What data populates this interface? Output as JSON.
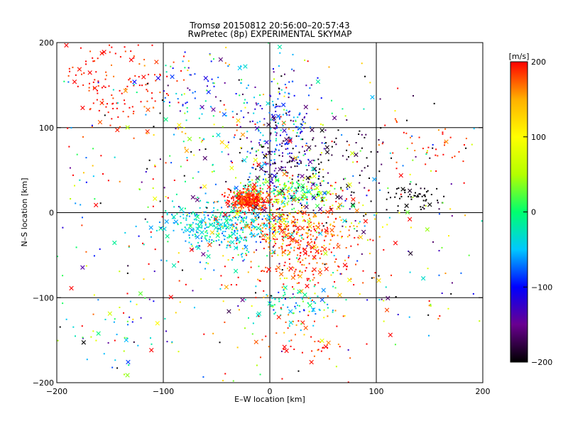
{
  "chart_data": {
    "type": "scatter",
    "title": "Tromsø 20150812 20:56:00–20:57:43",
    "subtitle": "RwPretec (8p) EXPERIMENTAL SKYMAP",
    "xlabel": "E–W location [km]",
    "ylabel": "N–S location [km]",
    "xlim": [
      -200,
      200
    ],
    "ylim": [
      -200,
      200
    ],
    "x_ticks": [
      -200,
      -100,
      0,
      100,
      200
    ],
    "y_ticks": [
      -200,
      -100,
      0,
      100,
      200
    ],
    "x_tick_labels": [
      "−200",
      "−100",
      "0",
      "100",
      "200"
    ],
    "y_tick_labels": [
      "−200",
      "−100",
      "0",
      "100",
      "200"
    ],
    "grid": true,
    "markers": [
      "dot",
      "cross"
    ],
    "colorbar": {
      "label": "[m/s]",
      "range": [
        -200,
        200
      ],
      "ticks": [
        200,
        100,
        0,
        -100,
        -200
      ],
      "tick_labels": [
        "200",
        "100",
        "0",
        "−100",
        "−200"
      ],
      "colors": [
        "#000000",
        "#6a0090",
        "#0000ff",
        "#00c8ff",
        "#00ff6e",
        "#b4ff00",
        "#ffff00",
        "#ffb000",
        "#ff0000"
      ]
    },
    "clusters": [
      {
        "cx": -20,
        "cy": 15,
        "sx": 10,
        "sy": 6,
        "n": 340,
        "v": 190,
        "vs": 18
      },
      {
        "cx": 20,
        "cy": 25,
        "sx": 22,
        "sy": 9,
        "n": 200,
        "v": 20,
        "vs": 45
      },
      {
        "cx": -40,
        "cy": -15,
        "sx": 28,
        "sy": 14,
        "n": 380,
        "v": -40,
        "vs": 22
      },
      {
        "cx": 30,
        "cy": -40,
        "sx": 25,
        "sy": 28,
        "n": 300,
        "v": 185,
        "vs": 25
      },
      {
        "cx": 20,
        "cy": -15,
        "sx": 30,
        "sy": 12,
        "n": 150,
        "v": 150,
        "vs": 50
      },
      {
        "cx": 10,
        "cy": 100,
        "sx": 18,
        "sy": 40,
        "n": 220,
        "v": -100,
        "vs": 45
      },
      {
        "cx": 40,
        "cy": 60,
        "sx": 35,
        "sy": 35,
        "n": 160,
        "v": -180,
        "vs": 25
      },
      {
        "cx": 135,
        "cy": 20,
        "sx": 14,
        "sy": 8,
        "n": 55,
        "v": -200,
        "vs": 8
      },
      {
        "cx": -140,
        "cy": 150,
        "sx": 30,
        "sy": 28,
        "n": 150,
        "v": 195,
        "vs": 15
      },
      {
        "cx": 20,
        "cy": -105,
        "sx": 18,
        "sy": 12,
        "n": 70,
        "v": -40,
        "vs": 40
      },
      {
        "cx": 30,
        "cy": -150,
        "sx": 28,
        "sy": 20,
        "n": 50,
        "v": 190,
        "vs": 20
      },
      {
        "cx": -60,
        "cy": 140,
        "sx": 25,
        "sy": 25,
        "n": 80,
        "v": -60,
        "vs": 70
      },
      {
        "cx": 150,
        "cy": 80,
        "sx": 20,
        "sy": 15,
        "n": 35,
        "v": 190,
        "vs": 15
      },
      {
        "cx": -150,
        "cy": -140,
        "sx": 25,
        "sy": 25,
        "n": 45,
        "v": -30,
        "vs": 80
      },
      {
        "cx": 0,
        "cy": 0,
        "sx": 110,
        "sy": 100,
        "n": 700,
        "v": 20,
        "vs": 170
      }
    ],
    "seed": 20150812
  }
}
